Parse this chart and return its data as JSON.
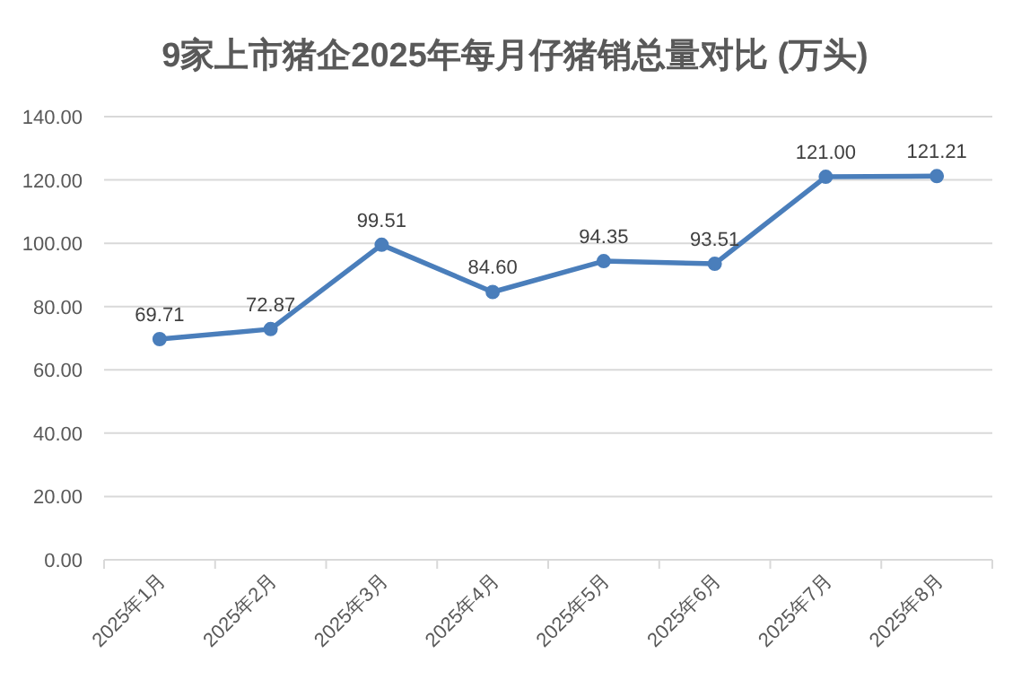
{
  "chart_data": {
    "type": "line",
    "title": "9家上市猪企2025年每月仔猪销总量对比 (万头)",
    "categories": [
      "2025年1月",
      "2025年2月",
      "2025年3月",
      "2025年4月",
      "2025年5月",
      "2025年6月",
      "2025年7月",
      "2025年8月"
    ],
    "series": [
      {
        "color": "#4a7ebb",
        "values": [
          69.71,
          72.87,
          99.51,
          84.6,
          94.35,
          93.51,
          121.0,
          121.21
        ],
        "value_labels": [
          "69.71",
          "72.87",
          "99.51",
          "84.60",
          "94.35",
          "93.51",
          "121.00",
          "121.21"
        ]
      }
    ],
    "ylim": [
      0,
      140
    ],
    "yticks": [
      {
        "value": 0,
        "label": "0.00"
      },
      {
        "value": 20,
        "label": "20.00"
      },
      {
        "value": 40,
        "label": "40.00"
      },
      {
        "value": 60,
        "label": "60.00"
      },
      {
        "value": 80,
        "label": "80.00"
      },
      {
        "value": 100,
        "label": "100.00"
      },
      {
        "value": 120,
        "label": "120.00"
      },
      {
        "value": 140,
        "label": "140.00"
      }
    ],
    "grid": "y",
    "marker": "circle",
    "line_style": "solid"
  }
}
